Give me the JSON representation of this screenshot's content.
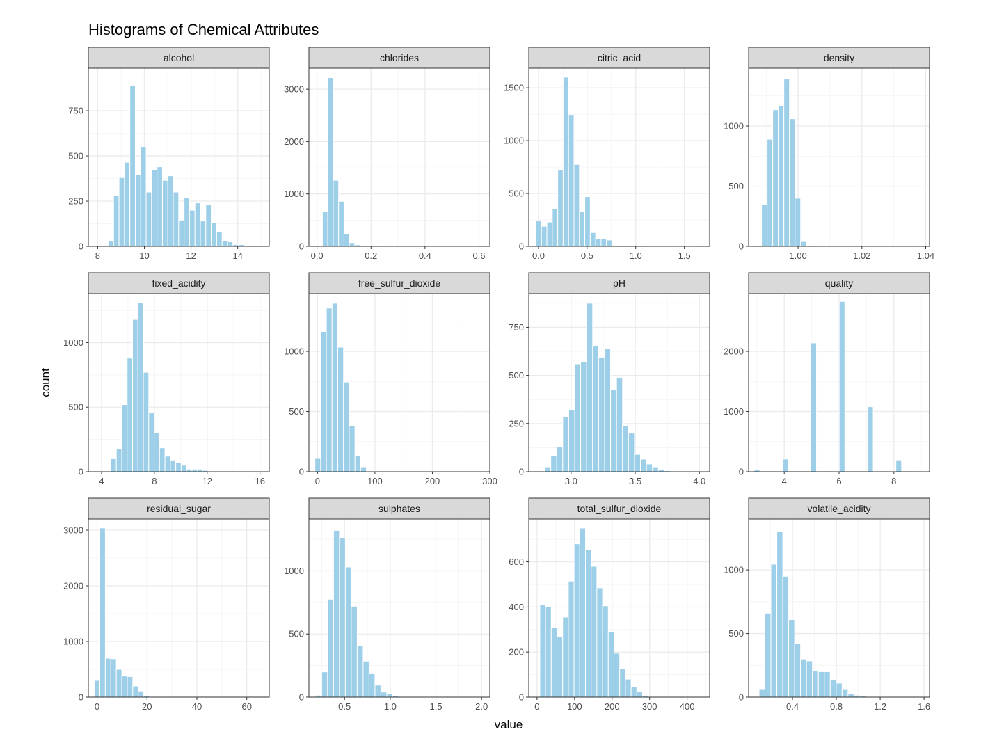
{
  "chart_data": {
    "type": "bar",
    "title": "Histograms of Chemical Attributes",
    "xlabel": "value",
    "ylabel": "count",
    "bar_color": "#9ECFE8",
    "grid": true,
    "panels": [
      {
        "name": "alcohol",
        "xlim": [
          7.6,
          15.35
        ],
        "ylim": [
          0,
          985
        ],
        "xticks": [
          8,
          10,
          12,
          14
        ],
        "yticks": [
          0,
          250,
          500,
          750
        ],
        "bins": {
          "start": 8.45,
          "width": 0.2323,
          "values": [
            30,
            280,
            380,
            465,
            890,
            395,
            550,
            300,
            425,
            440,
            365,
            390,
            300,
            145,
            270,
            200,
            240,
            140,
            230,
            130,
            80,
            30,
            25,
            10,
            10
          ]
        }
      },
      {
        "name": "chlorides",
        "xlim": [
          -0.03,
          0.64
        ],
        "ylim": [
          0,
          3400
        ],
        "xticks": [
          0.0,
          0.2,
          0.4,
          0.6
        ],
        "xtick_labels": [
          "0.0",
          "0.2",
          "0.4",
          "0.6"
        ],
        "yticks": [
          0,
          1000,
          2000,
          3000
        ],
        "bins": {
          "start": 0.0,
          "width": 0.02,
          "values": [
            5,
            670,
            3220,
            1260,
            860,
            240,
            70,
            30,
            15,
            10,
            5,
            3,
            3,
            2,
            2,
            2,
            1,
            1,
            1,
            1,
            1,
            1,
            1,
            1,
            1,
            1,
            1,
            1,
            1,
            1
          ]
        }
      },
      {
        "name": "citric_acid",
        "xlim": [
          -0.1,
          1.76
        ],
        "ylim": [
          0,
          1685
        ],
        "xticks": [
          0.0,
          0.5,
          1.0,
          1.5
        ],
        "xtick_labels": [
          "0.0",
          "0.5",
          "1.0",
          "1.5"
        ],
        "yticks": [
          0,
          500,
          1000,
          1500
        ],
        "bins": {
          "start": -0.025,
          "width": 0.0557,
          "values": [
            240,
            190,
            230,
            355,
            725,
            1600,
            1240,
            775,
            330,
            470,
            130,
            70,
            70,
            60,
            10,
            5,
            5,
            3,
            2,
            2,
            2,
            1,
            1,
            1,
            1,
            1,
            1,
            1,
            1,
            1
          ]
        }
      },
      {
        "name": "density",
        "xlim": [
          0.9845,
          1.0412
        ],
        "ylim": [
          0,
          1480
        ],
        "xticks": [
          1.0,
          1.02,
          1.04
        ],
        "xtick_labels": [
          "1.00",
          "1.02",
          "1.04"
        ],
        "yticks": [
          0,
          500,
          1000
        ],
        "bins": {
          "start": 0.9868,
          "width": 0.00175,
          "values": [
            5,
            345,
            890,
            1135,
            1165,
            1390,
            1060,
            400,
            40,
            3,
            2,
            1,
            1,
            1,
            1,
            1,
            1,
            1,
            1,
            1,
            1,
            1,
            1,
            1,
            1,
            1,
            1,
            1,
            1,
            1
          ]
        }
      },
      {
        "name": "fixed_acidity",
        "xlim": [
          3.0,
          16.7
        ],
        "ylim": [
          0,
          1380
        ],
        "xticks": [
          4,
          8,
          12,
          16
        ],
        "yticks": [
          0,
          500,
          1000
        ],
        "bins": {
          "start": 4.3,
          "width": 0.4092,
          "values": [
            5,
            100,
            175,
            520,
            880,
            1180,
            1310,
            770,
            455,
            300,
            185,
            120,
            90,
            70,
            50,
            20,
            20,
            20,
            10,
            5,
            3,
            3,
            2,
            2,
            1,
            1,
            1,
            1,
            1,
            1
          ]
        }
      },
      {
        "name": "free_sulfur_dioxide",
        "xlim": [
          -15,
          300
        ],
        "ylim": [
          0,
          1480
        ],
        "xticks": [
          0,
          100,
          200,
          300
        ],
        "yticks": [
          0,
          500,
          1000
        ],
        "bins": {
          "start": -4.5,
          "width": 9.95,
          "values": [
            110,
            1165,
            1360,
            1400,
            1035,
            745,
            380,
            130,
            40,
            5,
            3,
            2,
            1,
            1,
            1,
            1,
            1,
            1,
            1,
            1,
            1,
            1,
            1,
            1,
            1,
            1,
            1,
            1,
            1,
            1
          ]
        }
      },
      {
        "name": "pH",
        "xlim": [
          2.67,
          4.08
        ],
        "ylim": [
          0,
          925
        ],
        "xticks": [
          3.0,
          3.5,
          4.0
        ],
        "xtick_labels": [
          "3.0",
          "3.5",
          "4.0"
        ],
        "yticks": [
          0,
          250,
          500,
          750
        ],
        "bins": {
          "start": 2.795,
          "width": 0.0466,
          "values": [
            25,
            85,
            130,
            285,
            320,
            560,
            570,
            875,
            655,
            595,
            640,
            425,
            490,
            240,
            200,
            90,
            65,
            40,
            25,
            10,
            5,
            3,
            2,
            1,
            1,
            1,
            1,
            1,
            1,
            1
          ]
        }
      },
      {
        "name": "quality",
        "xlim": [
          2.7,
          9.3
        ],
        "ylim": [
          0,
          2960
        ],
        "xticks": [
          4,
          6,
          8
        ],
        "yticks": [
          0,
          1000,
          2000
        ],
        "bins": {
          "start": 2.9,
          "width": 0.2069,
          "values": [
            30,
            0,
            0,
            0,
            0,
            210,
            0,
            0,
            0,
            0,
            2140,
            0,
            0,
            0,
            0,
            2830,
            0,
            0,
            0,
            0,
            1080,
            0,
            0,
            0,
            0,
            195,
            0,
            0,
            0,
            5
          ]
        }
      },
      {
        "name": "residual_sugar",
        "xlim": [
          -3.5,
          69
        ],
        "ylim": [
          0,
          3200
        ],
        "xticks": [
          0,
          20,
          40,
          60
        ],
        "yticks": [
          0,
          1000,
          2000,
          3000
        ],
        "bins": {
          "start": -1.1,
          "width": 2.2,
          "values": [
            300,
            3040,
            700,
            690,
            500,
            380,
            370,
            200,
            110,
            20,
            5,
            3,
            2,
            2,
            1,
            1,
            1,
            1,
            1,
            1,
            1,
            1,
            1,
            1,
            1,
            1,
            1,
            1,
            1,
            1
          ]
        }
      },
      {
        "name": "sulphates",
        "xlim": [
          0.11,
          2.09
        ],
        "ylim": [
          0,
          1410
        ],
        "xticks": [
          0.5,
          1.0,
          1.5,
          2.0
        ],
        "xtick_labels": [
          "0.5",
          "1.0",
          "1.5",
          "2.0"
        ],
        "yticks": [
          0,
          500,
          1000
        ],
        "bins": {
          "start": 0.185,
          "width": 0.0648,
          "values": [
            15,
            200,
            775,
            1320,
            1260,
            1030,
            720,
            405,
            285,
            185,
            95,
            40,
            25,
            10,
            5,
            3,
            2,
            2,
            1,
            1,
            1,
            1,
            1,
            1,
            1,
            1,
            1,
            1,
            1,
            1
          ]
        }
      },
      {
        "name": "total_sulfur_dioxide",
        "xlim": [
          -22,
          460
        ],
        "ylim": [
          0,
          790
        ],
        "xticks": [
          0,
          100,
          200,
          300,
          400
        ],
        "yticks": [
          0,
          200,
          400,
          600
        ],
        "bins": {
          "start": 7.5,
          "width": 15.2,
          "values": [
            410,
            400,
            310,
            270,
            355,
            515,
            680,
            750,
            655,
            580,
            485,
            405,
            290,
            195,
            125,
            80,
            45,
            25,
            5,
            3,
            2,
            2,
            1,
            1,
            1,
            1,
            1,
            1,
            1,
            1
          ]
        }
      },
      {
        "name": "volatile_acidity",
        "xlim": [
          0.0,
          1.65
        ],
        "ylim": [
          0,
          1400
        ],
        "xticks": [
          0.4,
          0.8,
          1.2,
          1.6
        ],
        "xtick_labels": [
          "0.4",
          "0.8",
          "1.2",
          "1.6"
        ],
        "yticks": [
          0,
          500,
          1000
        ],
        "bins": {
          "start": 0.095,
          "width": 0.0541,
          "values": [
            60,
            660,
            1045,
            1300,
            950,
            610,
            420,
            300,
            285,
            205,
            200,
            200,
            140,
            110,
            60,
            30,
            15,
            10,
            5,
            5,
            2,
            2,
            1,
            1,
            1,
            1,
            1,
            1,
            1,
            1
          ]
        }
      }
    ]
  }
}
